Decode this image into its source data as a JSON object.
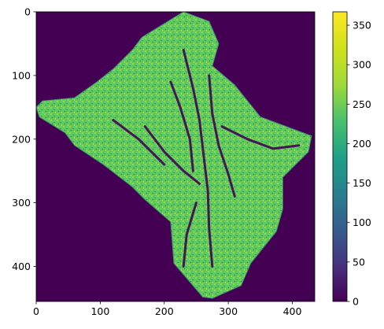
{
  "chart_data": {
    "type": "heatmap",
    "title": "",
    "xlabel": "",
    "ylabel": "",
    "xlim": [
      0,
      435
    ],
    "ylim": [
      0,
      455
    ],
    "y_inverted": true,
    "x_ticks": [
      0,
      100,
      200,
      300,
      400
    ],
    "y_ticks": [
      0,
      100,
      200,
      300,
      400
    ],
    "colormap": "viridis",
    "colorbar": {
      "range": [
        0,
        367
      ],
      "ticks": [
        0,
        50,
        100,
        150,
        200,
        250,
        300,
        350
      ]
    },
    "background_value": 0,
    "background_color": "#440154",
    "dominant_color": "#5ec962",
    "region_outline": [
      [
        165,
        40
      ],
      [
        230,
        0
      ],
      [
        270,
        15
      ],
      [
        285,
        50
      ],
      [
        275,
        85
      ],
      [
        310,
        115
      ],
      [
        350,
        165
      ],
      [
        430,
        195
      ],
      [
        425,
        220
      ],
      [
        385,
        260
      ],
      [
        385,
        310
      ],
      [
        375,
        345
      ],
      [
        335,
        395
      ],
      [
        320,
        430
      ],
      [
        275,
        450
      ],
      [
        260,
        448
      ],
      [
        215,
        395
      ],
      [
        210,
        330
      ],
      [
        170,
        295
      ],
      [
        150,
        275
      ],
      [
        105,
        240
      ],
      [
        60,
        210
      ],
      [
        45,
        190
      ],
      [
        5,
        165
      ],
      [
        0,
        150
      ],
      [
        10,
        140
      ],
      [
        60,
        135
      ],
      [
        95,
        110
      ],
      [
        120,
        90
      ],
      [
        150,
        60
      ]
    ],
    "dark_channels": [
      [
        [
          230,
          60
        ],
        [
          245,
          120
        ],
        [
          255,
          170
        ],
        [
          262,
          230
        ],
        [
          268,
          280
        ],
        [
          270,
          340
        ],
        [
          275,
          400
        ]
      ],
      [
        [
          270,
          100
        ],
        [
          275,
          160
        ],
        [
          285,
          210
        ],
        [
          300,
          255
        ],
        [
          310,
          290
        ]
      ],
      [
        [
          210,
          110
        ],
        [
          225,
          150
        ],
        [
          240,
          200
        ],
        [
          245,
          250
        ]
      ],
      [
        [
          170,
          180
        ],
        [
          200,
          220
        ],
        [
          230,
          250
        ],
        [
          255,
          270
        ]
      ],
      [
        [
          290,
          180
        ],
        [
          330,
          200
        ],
        [
          370,
          215
        ],
        [
          410,
          210
        ]
      ],
      [
        [
          120,
          170
        ],
        [
          160,
          200
        ],
        [
          200,
          240
        ]
      ],
      [
        [
          250,
          300
        ],
        [
          235,
          350
        ],
        [
          230,
          400
        ]
      ]
    ]
  }
}
